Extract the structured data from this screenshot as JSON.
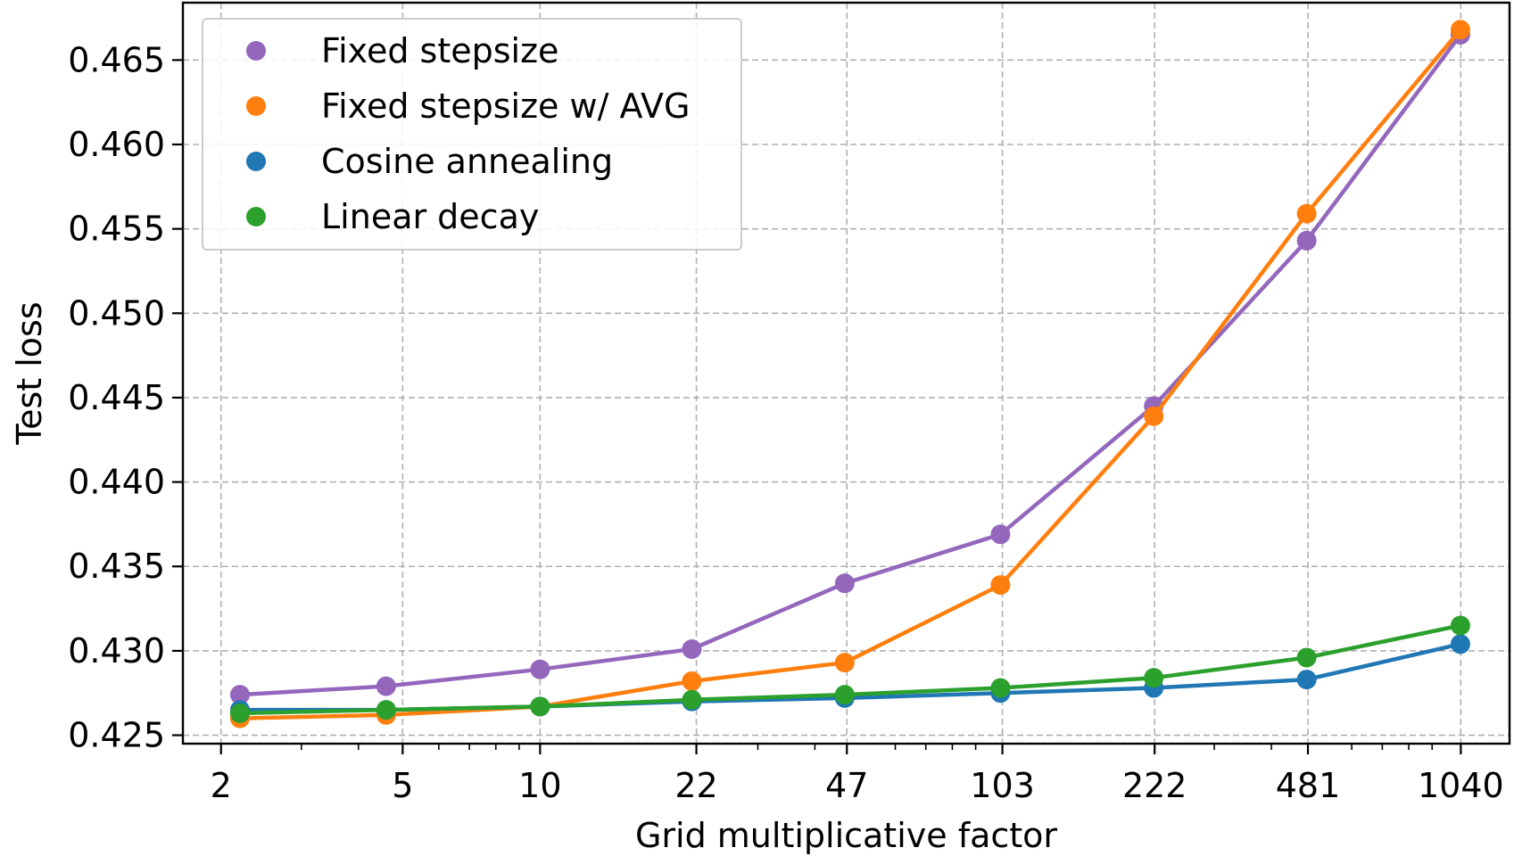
{
  "chart_data": {
    "type": "line",
    "title": "",
    "xlabel": "Grid multiplicative factor",
    "ylabel": "Test loss",
    "x_scale": "log",
    "grid": true,
    "legend_position": "top-left",
    "x_ticks": [
      2,
      5,
      10,
      22,
      47,
      103,
      222,
      481,
      1040
    ],
    "x_tick_labels": [
      "2",
      "5",
      "10",
      "22",
      "47",
      "103",
      "222",
      "481",
      "1040"
    ],
    "x_minor_ticks": [
      3,
      4,
      6,
      7,
      8,
      9,
      30,
      40,
      60,
      70,
      80,
      90,
      300,
      400,
      600,
      700,
      800,
      900
    ],
    "xlim": [
      1.65,
      1330
    ],
    "y_ticks": [
      0.425,
      0.43,
      0.435,
      0.44,
      0.445,
      0.45,
      0.455,
      0.46,
      0.465
    ],
    "y_tick_labels": [
      "0.425",
      "0.430",
      "0.435",
      "0.440",
      "0.445",
      "0.450",
      "0.455",
      "0.460",
      "0.465"
    ],
    "ylim": [
      0.4245,
      0.4684
    ],
    "x": [
      2.2,
      4.6,
      10,
      21.5,
      46.5,
      102,
      221,
      478,
      1038
    ],
    "series": [
      {
        "name": "Fixed stepsize",
        "color": "#9467bd",
        "values": [
          0.4274,
          0.4279,
          0.4289,
          0.4301,
          0.434,
          0.4369,
          0.4445,
          0.4543,
          0.4665
        ]
      },
      {
        "name": "Fixed stepsize w/ AVG",
        "color": "#ff7f0e",
        "values": [
          0.426,
          0.4262,
          0.4267,
          0.4282,
          0.4293,
          0.4339,
          0.4439,
          0.4559,
          0.4668
        ]
      },
      {
        "name": "Cosine annealing",
        "color": "#1f77b4",
        "values": [
          0.4265,
          0.4265,
          0.4267,
          0.427,
          0.4272,
          0.4275,
          0.4278,
          0.4283,
          0.4304
        ]
      },
      {
        "name": "Linear decay",
        "color": "#2ca02c",
        "values": [
          0.4263,
          0.4265,
          0.4267,
          0.4271,
          0.4274,
          0.4278,
          0.4284,
          0.4296,
          0.4315
        ]
      }
    ]
  }
}
